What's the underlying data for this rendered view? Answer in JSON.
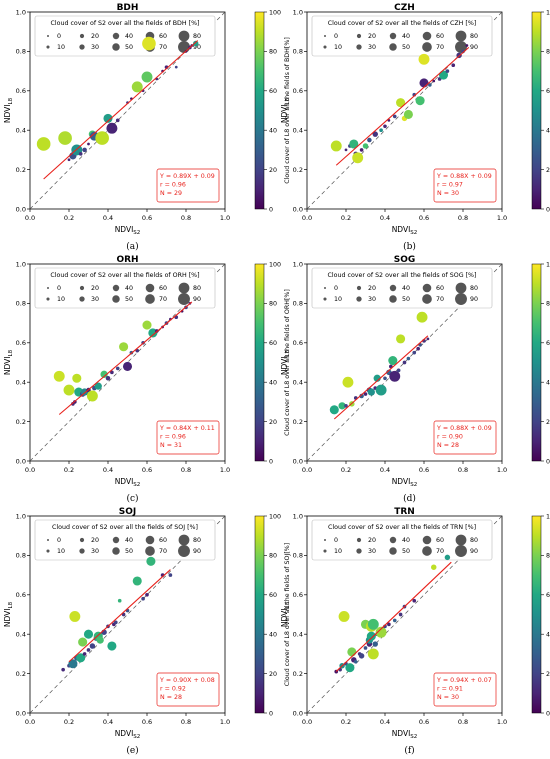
{
  "legend_title_template": "Cloud cover of S2 over all the fields of {name} [%]",
  "colorbar_label_template": "Cloud cover of L8 over all the fields of {name}[%]",
  "legend_sizes": [
    "0",
    "10",
    "20",
    "30",
    "40",
    "50",
    "60",
    "70",
    "80",
    "90"
  ],
  "colorbar_ticks": [
    "0",
    "20",
    "40",
    "60",
    "80",
    "100"
  ],
  "axis_ticks": [
    "0.0",
    "0.2",
    "0.4",
    "0.6",
    "0.8",
    "1.0"
  ],
  "xlabel": "NDVI",
  "xlabel_sub": "S2",
  "ylabel": "NDVI",
  "ylabel_sub": "L8",
  "colors": {
    "fit_line": "#e8211b",
    "stats_box": "#e8211b",
    "one_to_one": "#555555"
  },
  "chart_data": [
    {
      "type": "scatter",
      "title": "BDH",
      "caption": "(a)",
      "xlim": [
        0,
        1
      ],
      "ylim": [
        0,
        1
      ],
      "stats": [
        "Y = 0.89X + 0.09",
        "r = 0.96",
        "N = 29"
      ],
      "fit": {
        "slope": 0.89,
        "intercept": 0.09,
        "x_range": [
          0.07,
          0.86
        ]
      },
      "points": [
        [
          0.07,
          0.33,
          15,
          90
        ],
        [
          0.18,
          0.36,
          15,
          88
        ],
        [
          0.2,
          0.25,
          3,
          10
        ],
        [
          0.22,
          0.27,
          8,
          25
        ],
        [
          0.24,
          0.3,
          12,
          50
        ],
        [
          0.26,
          0.28,
          4,
          15
        ],
        [
          0.28,
          0.3,
          5,
          20
        ],
        [
          0.3,
          0.33,
          3,
          8
        ],
        [
          0.32,
          0.38,
          8,
          70
        ],
        [
          0.33,
          0.37,
          10,
          30
        ],
        [
          0.35,
          0.37,
          6,
          40
        ],
        [
          0.37,
          0.36,
          15,
          90
        ],
        [
          0.4,
          0.46,
          10,
          55
        ],
        [
          0.42,
          0.41,
          12,
          10
        ],
        [
          0.45,
          0.45,
          4,
          12
        ],
        [
          0.5,
          0.54,
          3,
          15
        ],
        [
          0.52,
          0.56,
          3,
          5
        ],
        [
          0.55,
          0.62,
          12,
          85
        ],
        [
          0.58,
          0.6,
          3,
          10
        ],
        [
          0.6,
          0.67,
          12,
          75
        ],
        [
          0.61,
          0.84,
          15,
          95
        ],
        [
          0.65,
          0.66,
          3,
          12
        ],
        [
          0.68,
          0.7,
          3,
          5
        ],
        [
          0.7,
          0.72,
          4,
          10
        ],
        [
          0.75,
          0.72,
          3,
          20
        ],
        [
          0.8,
          0.8,
          3,
          5
        ],
        [
          0.82,
          0.82,
          4,
          10
        ],
        [
          0.83,
          0.83,
          3,
          5
        ],
        [
          0.85,
          0.84,
          6,
          55
        ]
      ]
    },
    {
      "type": "scatter",
      "title": "CZH",
      "caption": "(b)",
      "xlim": [
        0,
        1
      ],
      "ylim": [
        0,
        1
      ],
      "stats": [
        "Y = 0.88X + 0.09",
        "r = 0.97",
        "N = 30"
      ],
      "fit": {
        "slope": 0.88,
        "intercept": 0.09,
        "x_range": [
          0.15,
          0.83
        ]
      },
      "points": [
        [
          0.15,
          0.32,
          12,
          90
        ],
        [
          0.2,
          0.3,
          3,
          10
        ],
        [
          0.22,
          0.32,
          4,
          20
        ],
        [
          0.24,
          0.33,
          10,
          65
        ],
        [
          0.25,
          0.28,
          5,
          15
        ],
        [
          0.26,
          0.26,
          12,
          92
        ],
        [
          0.28,
          0.3,
          4,
          8
        ],
        [
          0.3,
          0.32,
          6,
          70
        ],
        [
          0.32,
          0.35,
          5,
          25
        ],
        [
          0.35,
          0.38,
          6,
          15
        ],
        [
          0.38,
          0.4,
          4,
          50
        ],
        [
          0.4,
          0.42,
          4,
          12
        ],
        [
          0.42,
          0.45,
          3,
          8
        ],
        [
          0.45,
          0.47,
          4,
          20
        ],
        [
          0.48,
          0.54,
          10,
          90
        ],
        [
          0.5,
          0.46,
          6,
          95
        ],
        [
          0.52,
          0.48,
          10,
          80
        ],
        [
          0.55,
          0.58,
          4,
          20
        ],
        [
          0.58,
          0.55,
          10,
          70
        ],
        [
          0.6,
          0.64,
          10,
          10
        ],
        [
          0.6,
          0.76,
          12,
          95
        ],
        [
          0.63,
          0.63,
          4,
          30
        ],
        [
          0.65,
          0.65,
          3,
          5
        ],
        [
          0.68,
          0.66,
          4,
          15
        ],
        [
          0.7,
          0.68,
          10,
          60
        ],
        [
          0.72,
          0.7,
          4,
          20
        ],
        [
          0.75,
          0.73,
          4,
          10
        ],
        [
          0.78,
          0.78,
          6,
          15
        ],
        [
          0.8,
          0.8,
          4,
          20
        ],
        [
          0.82,
          0.83,
          3,
          5
        ]
      ]
    },
    {
      "type": "scatter",
      "title": "ORH",
      "caption": "(c)",
      "xlim": [
        0,
        1
      ],
      "ylim": [
        0,
        1
      ],
      "stats": [
        "Y = 0.84X + 0.11",
        "r = 0.96",
        "N = 31"
      ],
      "fit": {
        "slope": 0.84,
        "intercept": 0.11,
        "x_range": [
          0.15,
          0.83
        ]
      },
      "points": [
        [
          0.15,
          0.43,
          12,
          92
        ],
        [
          0.2,
          0.36,
          12,
          90
        ],
        [
          0.22,
          0.29,
          4,
          12
        ],
        [
          0.23,
          0.3,
          4,
          8
        ],
        [
          0.24,
          0.42,
          10,
          90
        ],
        [
          0.25,
          0.35,
          10,
          60
        ],
        [
          0.27,
          0.34,
          6,
          20
        ],
        [
          0.28,
          0.35,
          8,
          45
        ],
        [
          0.3,
          0.36,
          5,
          10
        ],
        [
          0.32,
          0.33,
          12,
          90
        ],
        [
          0.33,
          0.37,
          5,
          25
        ],
        [
          0.35,
          0.38,
          8,
          55
        ],
        [
          0.38,
          0.44,
          8,
          70
        ],
        [
          0.4,
          0.42,
          5,
          15
        ],
        [
          0.42,
          0.45,
          4,
          12
        ],
        [
          0.45,
          0.47,
          4,
          20
        ],
        [
          0.48,
          0.58,
          10,
          85
        ],
        [
          0.5,
          0.48,
          10,
          10
        ],
        [
          0.52,
          0.55,
          4,
          30
        ],
        [
          0.55,
          0.56,
          4,
          15
        ],
        [
          0.58,
          0.6,
          4,
          20
        ],
        [
          0.6,
          0.69,
          10,
          85
        ],
        [
          0.63,
          0.65,
          10,
          60
        ],
        [
          0.65,
          0.66,
          4,
          10
        ],
        [
          0.68,
          0.68,
          3,
          5
        ],
        [
          0.7,
          0.7,
          4,
          20
        ],
        [
          0.72,
          0.72,
          3,
          10
        ],
        [
          0.75,
          0.73,
          4,
          15
        ],
        [
          0.78,
          0.76,
          3,
          5
        ],
        [
          0.8,
          0.78,
          4,
          20
        ],
        [
          0.82,
          0.8,
          3,
          10
        ]
      ]
    },
    {
      "type": "scatter",
      "title": "SOG",
      "caption": "(d)",
      "xlim": [
        0,
        1
      ],
      "ylim": [
        0,
        1
      ],
      "stats": [
        "Y = 0.88X + 0.09",
        "r = 0.90",
        "N = 28"
      ],
      "fit": {
        "slope": 0.88,
        "intercept": 0.09,
        "x_range": [
          0.14,
          0.62
        ]
      },
      "points": [
        [
          0.14,
          0.26,
          10,
          60
        ],
        [
          0.18,
          0.28,
          8,
          65
        ],
        [
          0.2,
          0.28,
          4,
          20
        ],
        [
          0.21,
          0.4,
          12,
          92
        ],
        [
          0.23,
          0.29,
          6,
          85
        ],
        [
          0.25,
          0.32,
          4,
          15
        ],
        [
          0.28,
          0.33,
          5,
          30
        ],
        [
          0.3,
          0.34,
          4,
          10
        ],
        [
          0.32,
          0.36,
          6,
          20
        ],
        [
          0.33,
          0.35,
          8,
          50
        ],
        [
          0.35,
          0.37,
          4,
          12
        ],
        [
          0.36,
          0.42,
          8,
          55
        ],
        [
          0.38,
          0.36,
          12,
          55
        ],
        [
          0.4,
          0.42,
          4,
          25
        ],
        [
          0.42,
          0.45,
          6,
          30
        ],
        [
          0.43,
          0.48,
          4,
          10
        ],
        [
          0.44,
          0.51,
          10,
          65
        ],
        [
          0.45,
          0.43,
          12,
          10
        ],
        [
          0.47,
          0.46,
          4,
          20
        ],
        [
          0.48,
          0.62,
          10,
          90
        ],
        [
          0.5,
          0.5,
          4,
          15
        ],
        [
          0.52,
          0.52,
          4,
          30
        ],
        [
          0.55,
          0.55,
          4,
          20
        ],
        [
          0.57,
          0.57,
          4,
          10
        ],
        [
          0.58,
          0.59,
          4,
          25
        ],
        [
          0.59,
          0.73,
          12,
          90
        ],
        [
          0.6,
          0.61,
          4,
          15
        ],
        [
          0.62,
          0.62,
          3,
          10
        ]
      ]
    },
    {
      "type": "scatter",
      "title": "SOJ",
      "caption": "(e)",
      "xlim": [
        0,
        1
      ],
      "ylim": [
        0,
        1
      ],
      "stats": [
        "Y = 0.90X + 0.08",
        "r = 0.92",
        "N = 28"
      ],
      "fit": {
        "slope": 0.9,
        "intercept": 0.08,
        "x_range": [
          0.2,
          0.72
        ]
      },
      "points": [
        [
          0.17,
          0.22,
          4,
          12
        ],
        [
          0.2,
          0.24,
          4,
          20
        ],
        [
          0.22,
          0.25,
          10,
          40
        ],
        [
          0.23,
          0.49,
          12,
          92
        ],
        [
          0.24,
          0.28,
          6,
          30
        ],
        [
          0.26,
          0.28,
          10,
          60
        ],
        [
          0.27,
          0.36,
          10,
          80
        ],
        [
          0.28,
          0.3,
          4,
          10
        ],
        [
          0.3,
          0.4,
          10,
          60
        ],
        [
          0.3,
          0.32,
          4,
          15
        ],
        [
          0.32,
          0.34,
          6,
          20
        ],
        [
          0.34,
          0.38,
          6,
          40
        ],
        [
          0.35,
          0.39,
          10,
          65
        ],
        [
          0.36,
          0.37,
          8,
          70
        ],
        [
          0.38,
          0.41,
          6,
          20
        ],
        [
          0.4,
          0.44,
          4,
          15
        ],
        [
          0.42,
          0.34,
          10,
          60
        ],
        [
          0.43,
          0.45,
          4,
          10
        ],
        [
          0.44,
          0.46,
          4,
          20
        ],
        [
          0.46,
          0.57,
          4,
          65
        ],
        [
          0.48,
          0.5,
          4,
          15
        ],
        [
          0.5,
          0.52,
          4,
          25
        ],
        [
          0.55,
          0.67,
          10,
          65
        ],
        [
          0.58,
          0.58,
          4,
          20
        ],
        [
          0.6,
          0.6,
          4,
          10
        ],
        [
          0.62,
          0.77,
          10,
          65
        ],
        [
          0.68,
          0.7,
          4,
          10
        ],
        [
          0.72,
          0.7,
          4,
          20
        ]
      ]
    },
    {
      "type": "scatter",
      "title": "TRN",
      "caption": "(f)",
      "xlim": [
        0,
        1
      ],
      "ylim": [
        0,
        1
      ],
      "stats": [
        "Y = 0.94X + 0.07",
        "r = 0.91",
        "N = 30"
      ],
      "fit": {
        "slope": 0.94,
        "intercept": 0.07,
        "x_range": [
          0.15,
          0.74
        ]
      },
      "points": [
        [
          0.15,
          0.21,
          4,
          5
        ],
        [
          0.17,
          0.22,
          4,
          15
        ],
        [
          0.18,
          0.24,
          6,
          50
        ],
        [
          0.19,
          0.49,
          12,
          92
        ],
        [
          0.2,
          0.25,
          4,
          20
        ],
        [
          0.22,
          0.23,
          10,
          60
        ],
        [
          0.23,
          0.31,
          10,
          80
        ],
        [
          0.24,
          0.27,
          6,
          10
        ],
        [
          0.25,
          0.26,
          4,
          30
        ],
        [
          0.27,
          0.3,
          4,
          15
        ],
        [
          0.28,
          0.29,
          6,
          20
        ],
        [
          0.3,
          0.45,
          10,
          80
        ],
        [
          0.3,
          0.33,
          4,
          25
        ],
        [
          0.32,
          0.35,
          6,
          10
        ],
        [
          0.32,
          0.37,
          8,
          50
        ],
        [
          0.33,
          0.39,
          10,
          60
        ],
        [
          0.33,
          0.44,
          12,
          90
        ],
        [
          0.34,
          0.45,
          12,
          70
        ],
        [
          0.34,
          0.3,
          12,
          90
        ],
        [
          0.35,
          0.35,
          6,
          30
        ],
        [
          0.36,
          0.4,
          4,
          15
        ],
        [
          0.38,
          0.41,
          12,
          85
        ],
        [
          0.4,
          0.44,
          4,
          20
        ],
        [
          0.42,
          0.45,
          4,
          10
        ],
        [
          0.45,
          0.47,
          4,
          30
        ],
        [
          0.48,
          0.5,
          4,
          15
        ],
        [
          0.5,
          0.54,
          4,
          20
        ],
        [
          0.55,
          0.57,
          4,
          10
        ],
        [
          0.65,
          0.74,
          6,
          90
        ],
        [
          0.72,
          0.79,
          6,
          55
        ]
      ]
    }
  ]
}
